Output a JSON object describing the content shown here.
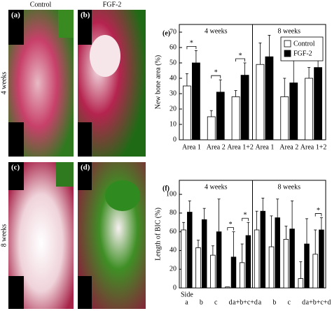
{
  "figure": {
    "column_labels": [
      "Control",
      "FGF-2"
    ],
    "row_labels": [
      "4 weeks",
      "8 weeks"
    ],
    "panel_labels": [
      "(a)",
      "(b)",
      "(c)",
      "(d)"
    ]
  },
  "chart_data": [
    {
      "type": "bar",
      "label": "(e)",
      "ylabel": "New bone area (%)",
      "categories": [
        "Area 1",
        "Area 2",
        "Area 1+2"
      ],
      "series": [
        {
          "name": "Control",
          "color": "#ffffff"
        },
        {
          "name": "FGF-2",
          "color": "#000000"
        }
      ],
      "legend": "upper right",
      "ylim": [
        0,
        75
      ],
      "yticks": [
        0,
        10,
        20,
        30,
        40,
        50,
        60,
        70
      ],
      "facets": [
        {
          "title": "4 weeks",
          "values": [
            [
              35,
              15,
              28
            ],
            [
              50,
              31,
              42
            ]
          ],
          "errors": [
            [
              8,
              4,
              4
            ],
            [
              8,
              8,
              8
            ]
          ],
          "significance": [
            "*",
            "*",
            "*"
          ]
        },
        {
          "title": "8 weeks",
          "values": [
            [
              49,
              28,
              40
            ],
            [
              54,
              37,
              47
            ]
          ],
          "errors": [
            [
              14,
              12,
              7
            ],
            [
              14,
              15,
              14
            ]
          ],
          "significance": [
            null,
            null,
            null
          ]
        }
      ]
    },
    {
      "type": "bar",
      "label": "(f)",
      "ylabel": "Length of BIC (%)",
      "xlabel": "Side",
      "categories": [
        "a",
        "b",
        "c",
        "d",
        "a+b+c+d"
      ],
      "colors": [
        "#ffffff",
        "#000000"
      ],
      "ylim": [
        0,
        115
      ],
      "yticks": [
        0,
        20,
        40,
        60,
        80,
        100
      ],
      "facets": [
        {
          "title": "4 weeks",
          "values": [
            [
              62,
              43,
              35,
              1,
              27
            ],
            [
              81,
              73,
              60,
              33,
              56
            ]
          ],
          "errors": [
            [
              8,
              8,
              10,
              0,
              20
            ],
            [
              12,
              12,
              35,
              27,
              14
            ]
          ],
          "significance": [
            null,
            null,
            null,
            "*",
            "*"
          ]
        },
        {
          "title": "8 weeks",
          "values": [
            [
              62,
              44,
              52,
              10,
              36
            ],
            [
              82,
              75,
              63,
              47,
              62
            ]
          ],
          "errors": [
            [
              20,
              33,
              14,
              18,
              26
            ],
            [
              14,
              20,
              30,
              27,
              13
            ]
          ],
          "significance": [
            null,
            null,
            null,
            null,
            "*"
          ]
        }
      ]
    }
  ]
}
